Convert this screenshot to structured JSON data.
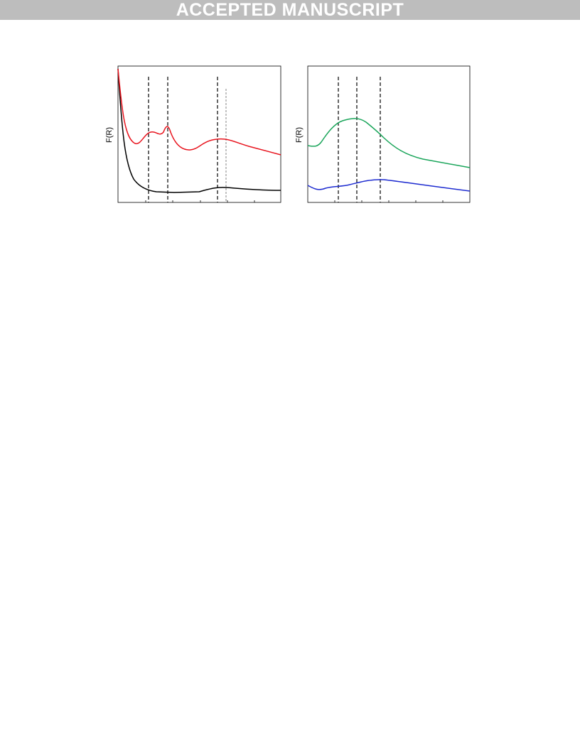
{
  "header": {
    "title": "ACCEPTED MANUSCRIPT"
  },
  "figure": {
    "panels": [
      {
        "y_label": "F(R)"
      },
      {
        "y_label": "F(R)"
      }
    ]
  }
}
